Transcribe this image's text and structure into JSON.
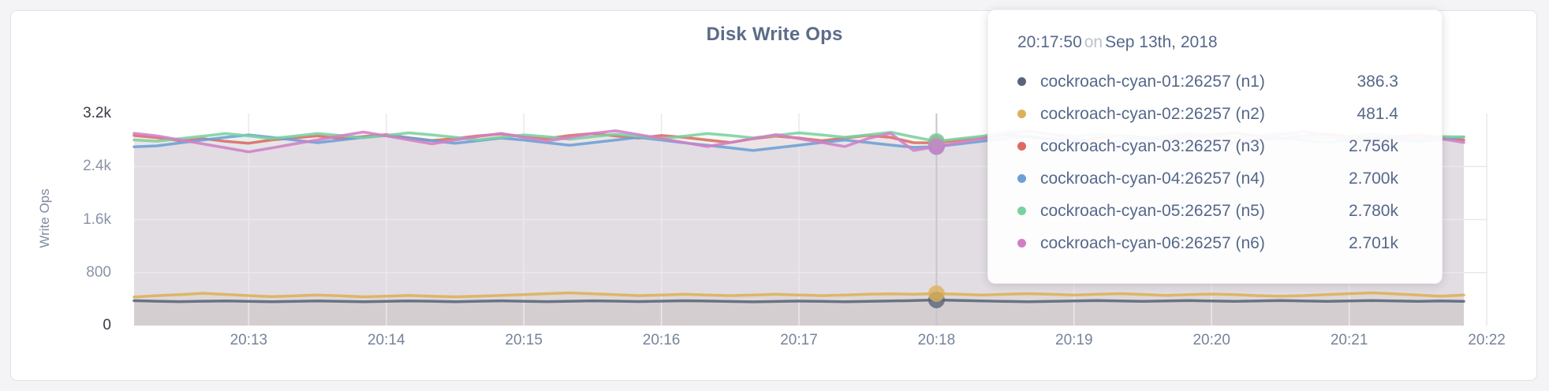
{
  "page": {
    "background": "#f4f4f6"
  },
  "tooltip": {
    "time": "20:17:50",
    "conjunction": "on",
    "date": "Sep 13th, 2018",
    "rows": [
      {
        "label": "cockroach-cyan-01:26257 (n1)",
        "value": "386.3"
      },
      {
        "label": "cockroach-cyan-02:26257 (n2)",
        "value": "481.4"
      },
      {
        "label": "cockroach-cyan-03:26257 (n3)",
        "value": "2.756k"
      },
      {
        "label": "cockroach-cyan-04:26257 (n4)",
        "value": "2.700k"
      },
      {
        "label": "cockroach-cyan-05:26257 (n5)",
        "value": "2.780k"
      },
      {
        "label": "cockroach-cyan-06:26257 (n6)",
        "value": "2.701k"
      }
    ]
  },
  "chart_data": {
    "type": "area",
    "title": "Disk Write Ops",
    "ylabel": "Write Ops",
    "xlabel": "",
    "ylim": [
      0,
      3200
    ],
    "grid": true,
    "legend_position": "tooltip",
    "x_range": [
      "20:12:10",
      "20:21:50"
    ],
    "x_interval_seconds": 10,
    "y_ticks": [
      {
        "label": "3.2k",
        "value": 3200,
        "grid": false,
        "emphasis": true
      },
      {
        "label": "2.4k",
        "value": 2400,
        "grid": true,
        "emphasis": false
      },
      {
        "label": "1.6k",
        "value": 1600,
        "grid": true,
        "emphasis": false
      },
      {
        "label": "800",
        "value": 800,
        "grid": true,
        "emphasis": false
      },
      {
        "label": "0",
        "value": 0,
        "grid": false,
        "emphasis": true
      }
    ],
    "x_ticks": [
      {
        "label": "20:13",
        "t": 50
      },
      {
        "label": "20:14",
        "t": 110
      },
      {
        "label": "20:15",
        "t": 170
      },
      {
        "label": "20:16",
        "t": 230
      },
      {
        "label": "20:17",
        "t": 290
      },
      {
        "label": "20:18",
        "t": 350
      },
      {
        "label": "20:19",
        "t": 410
      },
      {
        "label": "20:20",
        "t": 470
      },
      {
        "label": "20:21",
        "t": 530
      },
      {
        "label": "20:22",
        "t": 590
      }
    ],
    "x_domain_seconds": 580,
    "hover": {
      "time": "20:17:50",
      "index": 35
    },
    "series": [
      {
        "name": "cockroach-cyan-01:26257 (n1)",
        "color": "#586579",
        "values": [
          376,
          368,
          362,
          367,
          372,
          366,
          360,
          365,
          371,
          366,
          360,
          366,
          372,
          367,
          361,
          367,
          373,
          368,
          362,
          368,
          374,
          369,
          363,
          369,
          375,
          370,
          364,
          358,
          364,
          370,
          365,
          359,
          365,
          371,
          377,
          386.3,
          379,
          371,
          365,
          359,
          365,
          371,
          377,
          371,
          365,
          371,
          377,
          371,
          365,
          371,
          377,
          372,
          366,
          372,
          378,
          372,
          366,
          372,
          366
        ]
      },
      {
        "name": "cockroach-cyan-02:26257 (n2)",
        "color": "#ddb158",
        "values": [
          432,
          452,
          468,
          488,
          470,
          452,
          436,
          448,
          462,
          448,
          434,
          444,
          454,
          444,
          434,
          444,
          456,
          468,
          482,
          494,
          480,
          466,
          452,
          462,
          472,
          462,
          452,
          462,
          472,
          462,
          452,
          462,
          472,
          478,
          474,
          481.4,
          472,
          462,
          472,
          482,
          472,
          462,
          472,
          482,
          470,
          456,
          466,
          476,
          466,
          452,
          442,
          452,
          466,
          482,
          494,
          478,
          460,
          442,
          462
        ]
      },
      {
        "name": "cockroach-cyan-03:26257 (n3)",
        "color": "#dd6a62",
        "values": [
          2868,
          2836,
          2790,
          2822,
          2780,
          2752,
          2802,
          2832,
          2862,
          2822,
          2852,
          2882,
          2832,
          2792,
          2822,
          2862,
          2892,
          2852,
          2820,
          2868,
          2898,
          2862,
          2830,
          2868,
          2840,
          2800,
          2762,
          2820,
          2860,
          2830,
          2790,
          2830,
          2870,
          2840,
          2760,
          2756,
          2800,
          2840,
          2880,
          2850,
          2810,
          2772,
          2830,
          2870,
          2840,
          2800,
          2840,
          2880,
          2908,
          2860,
          2820,
          2860,
          2890,
          2850,
          2812,
          2850,
          2880,
          2840,
          2800
        ]
      },
      {
        "name": "cockroach-cyan-04:26257 (n4)",
        "color": "#6b9fd6",
        "values": [
          2698,
          2712,
          2756,
          2800,
          2842,
          2878,
          2840,
          2800,
          2760,
          2800,
          2840,
          2868,
          2830,
          2790,
          2752,
          2790,
          2830,
          2800,
          2760,
          2722,
          2760,
          2800,
          2840,
          2800,
          2758,
          2720,
          2682,
          2642,
          2682,
          2722,
          2762,
          2800,
          2762,
          2724,
          2690,
          2700,
          2742,
          2782,
          2822,
          2858,
          2820,
          2780,
          2742,
          2782,
          2820,
          2790,
          2752,
          2712,
          2752,
          2792,
          2830,
          2800,
          2762,
          2800,
          2838,
          2810,
          2772,
          2810,
          2848
        ]
      },
      {
        "name": "cockroach-cyan-05:26257 (n5)",
        "color": "#7bd0a0",
        "values": [
          2802,
          2782,
          2820,
          2858,
          2898,
          2862,
          2822,
          2860,
          2898,
          2868,
          2832,
          2870,
          2908,
          2878,
          2842,
          2802,
          2842,
          2878,
          2850,
          2812,
          2850,
          2888,
          2858,
          2822,
          2858,
          2898,
          2868,
          2832,
          2870,
          2908,
          2878,
          2842,
          2878,
          2918,
          2848,
          2780,
          2820,
          2858,
          2920,
          2928,
          2888,
          2850,
          2888,
          2858,
          2822,
          2858,
          2898,
          2868,
          2832,
          2868,
          2898,
          2860,
          2822,
          2858,
          2888,
          2852,
          2815,
          2852,
          2848
        ]
      },
      {
        "name": "cockroach-cyan-06:26257 (n6)",
        "color": "#d07fc6",
        "values": [
          2902,
          2862,
          2802,
          2742,
          2682,
          2622,
          2680,
          2742,
          2802,
          2862,
          2920,
          2862,
          2802,
          2742,
          2800,
          2852,
          2900,
          2842,
          2782,
          2840,
          2900,
          2940,
          2882,
          2822,
          2762,
          2702,
          2762,
          2822,
          2882,
          2822,
          2762,
          2702,
          2822,
          2902,
          2642,
          2701,
          2762,
          2822,
          2882,
          2940,
          2882,
          2822,
          2762,
          2702,
          2762,
          2822,
          2880,
          2822,
          2762,
          2822,
          2882,
          2930,
          2870,
          2810,
          2752,
          2810,
          2868,
          2820,
          2762
        ]
      }
    ],
    "style": {
      "grid_color": "#e9e9ec",
      "hover_line_color": "#c6c6cb",
      "area_opacity": 0.09,
      "line_opacity": 0.88,
      "dot_opacity": 0.8
    }
  }
}
